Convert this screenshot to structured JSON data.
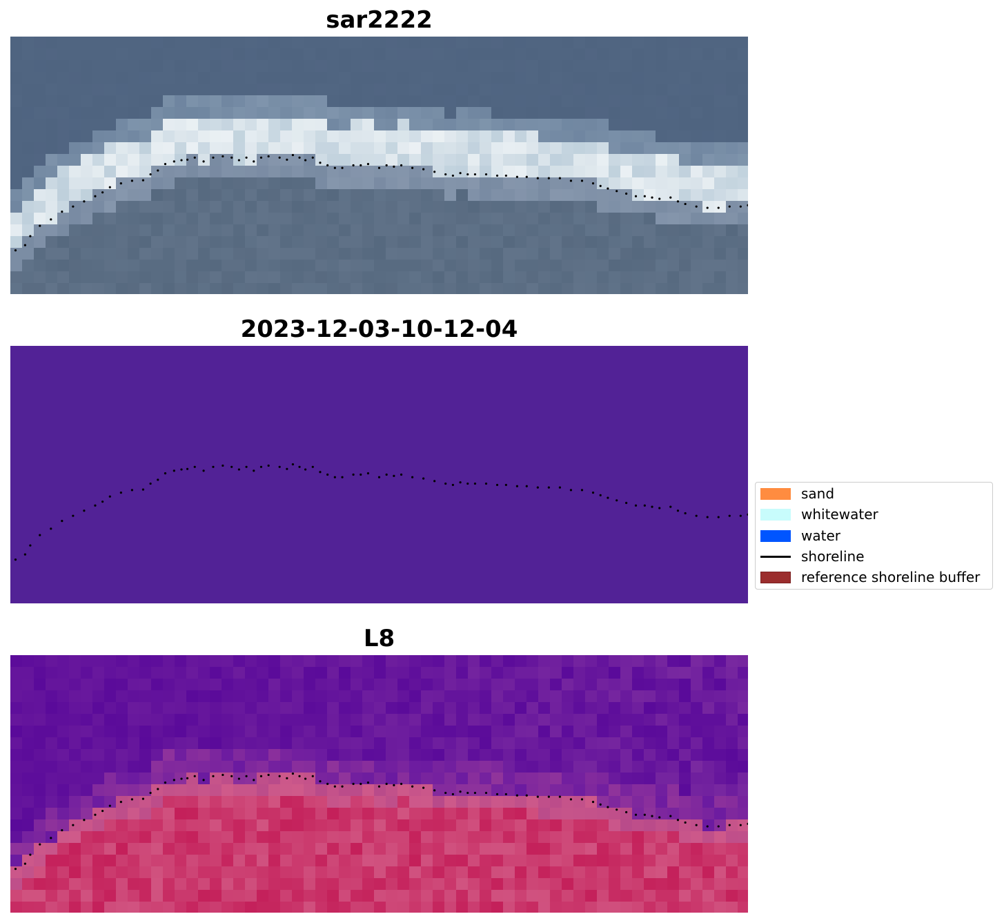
{
  "panels": [
    {
      "title": "sar2222",
      "kind": "rgb"
    },
    {
      "title": "2023-12-03-10-12-04",
      "kind": "classified",
      "fill_color": "#522296"
    },
    {
      "title": "L8",
      "kind": "index"
    }
  ],
  "legend": {
    "items": [
      {
        "label": "sand",
        "color": "#ff8c40",
        "type": "patch"
      },
      {
        "label": "whitewater",
        "color": "#c8fcfc",
        "type": "patch"
      },
      {
        "label": "water",
        "color": "#0055ff",
        "type": "patch"
      },
      {
        "label": "shoreline",
        "color": "#000000",
        "type": "line"
      },
      {
        "label": "reference shoreline buffer",
        "color": "#9b2d2d",
        "type": "patch"
      }
    ]
  },
  "chart_data": {
    "type": "scatter",
    "series": [
      {
        "name": "shoreline",
        "x": [
          0.007,
          0.02,
          0.027,
          0.04,
          0.055,
          0.07,
          0.085,
          0.1,
          0.115,
          0.125,
          0.135,
          0.15,
          0.165,
          0.18,
          0.19,
          0.2,
          0.21,
          0.222,
          0.232,
          0.24,
          0.25,
          0.262,
          0.275,
          0.288,
          0.3,
          0.31,
          0.32,
          0.33,
          0.34,
          0.35,
          0.365,
          0.375,
          0.383,
          0.392,
          0.4,
          0.41,
          0.42,
          0.43,
          0.44,
          0.45,
          0.465,
          0.475,
          0.485,
          0.5,
          0.51,
          0.52,
          0.53,
          0.545,
          0.56,
          0.575,
          0.59,
          0.6,
          0.61,
          0.62,
          0.63,
          0.645,
          0.66,
          0.672,
          0.687,
          0.7,
          0.715,
          0.73,
          0.745,
          0.76,
          0.775,
          0.79,
          0.8,
          0.81,
          0.822,
          0.835,
          0.848,
          0.86,
          0.87,
          0.88,
          0.895,
          0.905,
          0.915,
          0.93,
          0.945,
          0.96,
          0.975,
          0.99,
          1.0
        ],
        "y": [
          0.83,
          0.81,
          0.775,
          0.735,
          0.71,
          0.68,
          0.66,
          0.64,
          0.62,
          0.605,
          0.585,
          0.57,
          0.56,
          0.558,
          0.535,
          0.52,
          0.495,
          0.485,
          0.48,
          0.478,
          0.47,
          0.485,
          0.47,
          0.465,
          0.47,
          0.48,
          0.47,
          0.485,
          0.47,
          0.465,
          0.47,
          0.478,
          0.46,
          0.47,
          0.48,
          0.47,
          0.49,
          0.5,
          0.51,
          0.51,
          0.5,
          0.5,
          0.495,
          0.51,
          0.5,
          0.505,
          0.5,
          0.51,
          0.515,
          0.525,
          0.535,
          0.54,
          0.53,
          0.535,
          0.535,
          0.535,
          0.54,
          0.54,
          0.545,
          0.545,
          0.55,
          0.55,
          0.55,
          0.56,
          0.56,
          0.57,
          0.58,
          0.59,
          0.6,
          0.61,
          0.62,
          0.62,
          0.625,
          0.63,
          0.625,
          0.64,
          0.65,
          0.66,
          0.665,
          0.665,
          0.66,
          0.66,
          0.655
        ]
      }
    ],
    "notes": "Shoreline points in normalized image coordinates (0-1 of image width/height), same in all three panels; axes hidden."
  }
}
